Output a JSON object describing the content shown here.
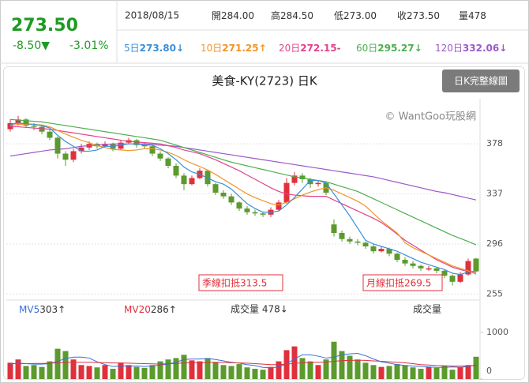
{
  "header": {
    "price": "273.50",
    "change": "-8.50▼",
    "change_pct": "-3.01%",
    "color": "#1f9a24",
    "date": "2018/08/15",
    "quotes": [
      {
        "label": "開",
        "value": "284.00"
      },
      {
        "label": "高",
        "value": "284.50"
      },
      {
        "label": "低",
        "value": "273.00"
      },
      {
        "label": "收",
        "value": "273.50"
      },
      {
        "label": "量",
        "value": "478"
      }
    ],
    "averages": [
      {
        "label": "5日",
        "value": "273.80↓",
        "color": "#3b8fd9"
      },
      {
        "label": "10日",
        "value": "271.25↑",
        "color": "#f0962a"
      },
      {
        "label": "20日",
        "value": "272.15-",
        "color": "#e0438c"
      },
      {
        "label": "60日",
        "value": "295.27↓",
        "color": "#4caf50"
      },
      {
        "label": "120日",
        "value": "332.06↓",
        "color": "#9b59c9"
      }
    ]
  },
  "chart_data": [
    {
      "type": "candlestick",
      "title": "美食-KY(2723) 日K",
      "button": "日K完整線圖",
      "watermark": "© WantGoo玩股網",
      "open": [
        390,
        395,
        398,
        393,
        392,
        388,
        383,
        370,
        365,
        372,
        375,
        378,
        376,
        378,
        374,
        379,
        381,
        377,
        376,
        370,
        366,
        360,
        352,
        345,
        350,
        356,
        345,
        338,
        335,
        330,
        325,
        322,
        321,
        320,
        324,
        330,
        346,
        352,
        349,
        345,
        346,
        312,
        305,
        300,
        298,
        297,
        294,
        290,
        292,
        288,
        283,
        280,
        278,
        275,
        276,
        274,
        270,
        265,
        271,
        284
      ],
      "high": [
        398,
        401,
        399,
        395,
        393,
        390,
        384,
        372,
        374,
        378,
        380,
        379,
        380,
        379,
        381,
        383,
        382,
        379,
        377,
        372,
        367,
        362,
        354,
        352,
        358,
        357,
        346,
        340,
        337,
        331,
        327,
        324,
        322,
        326,
        332,
        350,
        355,
        354,
        350,
        348,
        347,
        316,
        307,
        302,
        300,
        298,
        296,
        294,
        293,
        289,
        285,
        282,
        279,
        278,
        277,
        275,
        271,
        273,
        284,
        284.5
      ],
      "low": [
        388,
        393,
        391,
        389,
        386,
        381,
        366,
        360,
        363,
        370,
        373,
        374,
        375,
        372,
        373,
        378,
        375,
        374,
        368,
        364,
        358,
        350,
        340,
        344,
        349,
        343,
        336,
        333,
        328,
        323,
        320,
        319,
        318,
        318,
        323,
        329,
        344,
        346,
        342,
        343,
        336,
        302,
        298,
        296,
        295,
        292,
        288,
        289,
        286,
        281,
        278,
        276,
        274,
        274,
        272,
        268,
        262,
        264,
        270,
        273
      ],
      "close": [
        395,
        398,
        393,
        392,
        388,
        383,
        370,
        365,
        372,
        375,
        378,
        376,
        378,
        374,
        379,
        381,
        377,
        376,
        370,
        366,
        360,
        352,
        345,
        350,
        356,
        345,
        338,
        335,
        330,
        325,
        322,
        321,
        320,
        324,
        330,
        346,
        352,
        349,
        345,
        346,
        338,
        305,
        300,
        298,
        297,
        294,
        290,
        292,
        288,
        283,
        280,
        278,
        276,
        276,
        274,
        270,
        265,
        271,
        282,
        273.5
      ],
      "up_color": "#e0303c",
      "down_color": "#5b9a2c",
      "series": [
        {
          "color": "#9b59c9",
          "values": [
            368,
            369,
            370,
            371,
            372,
            373,
            373.5,
            374,
            375,
            376,
            376.5,
            377,
            377.5,
            378,
            378,
            378,
            378,
            378,
            377.5,
            377,
            376.5,
            376,
            375,
            374,
            373,
            372,
            371,
            370,
            369,
            368,
            367,
            366,
            365,
            364,
            363,
            362,
            361,
            360,
            359,
            358,
            357,
            356,
            355,
            354,
            353,
            352,
            351,
            349.5,
            348,
            346.5,
            345,
            343.5,
            342,
            340.5,
            339,
            338,
            336.5,
            335,
            333.5,
            332.06
          ]
        },
        {
          "color": "#4caf50",
          "values": [
            398,
            397.5,
            397,
            396.5,
            396,
            395,
            394,
            393,
            392,
            391,
            390,
            389,
            388,
            387,
            386,
            385,
            384,
            383,
            382,
            381,
            379,
            377,
            375,
            373,
            371,
            369,
            367,
            365,
            363,
            361.5,
            360,
            358.5,
            357,
            355.5,
            354,
            352.5,
            351,
            350,
            349,
            348,
            347,
            345,
            343,
            341,
            339,
            336,
            333,
            330,
            327,
            324,
            321,
            318,
            315,
            312,
            309,
            306,
            303,
            300.5,
            298,
            295.27
          ]
        },
        {
          "color": "#e0438c",
          "values": [
            392,
            392,
            391.5,
            391,
            390.5,
            390,
            389,
            388,
            387,
            386,
            385,
            384,
            383,
            382,
            381,
            380,
            379.5,
            379,
            378.5,
            378,
            376.5,
            375,
            373,
            371.5,
            370,
            367.5,
            365,
            362,
            359,
            356,
            352.5,
            349,
            345.5,
            342,
            339,
            337,
            336,
            335.5,
            335,
            335,
            335,
            332,
            329,
            326,
            323,
            320,
            317,
            313.5,
            309,
            304,
            299,
            295,
            291,
            287,
            283,
            280,
            277,
            275,
            273.5,
            272.15
          ]
        },
        {
          "color": "#f0962a",
          "values": [
            393,
            394,
            394,
            394,
            393.5,
            392,
            389,
            386,
            383.5,
            381,
            379,
            376.5,
            375,
            373.5,
            373,
            372.5,
            373,
            374,
            374,
            373,
            371,
            368.5,
            365,
            362,
            359.5,
            356.5,
            353,
            349,
            345,
            341,
            337,
            334,
            331.5,
            329,
            328,
            330,
            333,
            336,
            338.5,
            340.5,
            342,
            340,
            337,
            334,
            331,
            327,
            321,
            315,
            310,
            305,
            297,
            293,
            290,
            287,
            284,
            281,
            278,
            276,
            274,
            271.25
          ]
        },
        {
          "color": "#3b8fd9",
          "values": [
            394,
            395,
            394.5,
            394,
            393,
            391,
            385,
            380,
            376,
            372,
            372,
            373,
            376,
            376,
            377,
            378,
            378,
            377,
            377,
            374,
            370,
            365,
            359,
            355,
            353,
            350,
            347,
            345,
            341,
            335,
            329,
            325,
            322,
            322,
            323,
            328,
            334,
            341,
            348,
            348,
            346,
            337,
            328,
            319,
            309,
            299,
            296,
            294,
            292,
            290,
            287,
            284,
            281,
            279,
            277,
            275,
            272,
            271,
            273,
            273.8
          ]
        }
      ],
      "ylim": [
        250,
        415
      ],
      "yticks": [
        255,
        296,
        337,
        378
      ],
      "grid": true,
      "annotations": [
        "季線扣抵313.5",
        "月線扣抵269.5"
      ]
    },
    {
      "type": "bar",
      "title": "成交量",
      "summary": "成交量 478↓",
      "values": [
        350,
        420,
        280,
        300,
        260,
        380,
        650,
        600,
        420,
        300,
        280,
        250,
        300,
        220,
        350,
        300,
        260,
        240,
        300,
        380,
        420,
        450,
        520,
        400,
        380,
        450,
        360,
        300,
        280,
        320,
        250,
        220,
        200,
        260,
        380,
        620,
        700,
        450,
        380,
        300,
        420,
        800,
        600,
        500,
        420,
        350,
        300,
        260,
        280,
        320,
        300,
        250,
        220,
        260,
        240,
        280,
        200,
        260,
        300,
        478
      ],
      "series": [
        {
          "name": "MV5",
          "color": "#3b6fd6",
          "label": "303↑",
          "values": [
            320,
            340,
            330,
            320,
            320,
            330,
            380,
            440,
            470,
            470,
            450,
            370,
            310,
            270,
            280,
            280,
            280,
            270,
            280,
            300,
            320,
            360,
            420,
            430,
            430,
            440,
            420,
            390,
            360,
            340,
            310,
            290,
            250,
            240,
            260,
            330,
            430,
            520,
            520,
            490,
            450,
            470,
            520,
            540,
            550,
            500,
            430,
            370,
            340,
            310,
            290,
            280,
            270,
            260,
            250,
            250,
            260,
            250,
            270,
            303
          ]
        },
        {
          "name": "MV20",
          "color": "#e03040",
          "label": "286↑",
          "values": [
            330,
            330,
            330,
            335,
            335,
            340,
            350,
            355,
            360,
            360,
            360,
            355,
            350,
            345,
            345,
            340,
            335,
            330,
            325,
            320,
            330,
            335,
            345,
            350,
            350,
            355,
            360,
            355,
            350,
            345,
            340,
            330,
            320,
            310,
            310,
            320,
            335,
            350,
            355,
            360,
            365,
            380,
            395,
            400,
            405,
            400,
            390,
            380,
            370,
            360,
            350,
            330,
            310,
            300,
            290,
            285,
            280,
            280,
            284,
            286
          ]
        }
      ],
      "ylim": [
        0,
        1270
      ],
      "yticks": [
        0,
        1000
      ]
    }
  ]
}
